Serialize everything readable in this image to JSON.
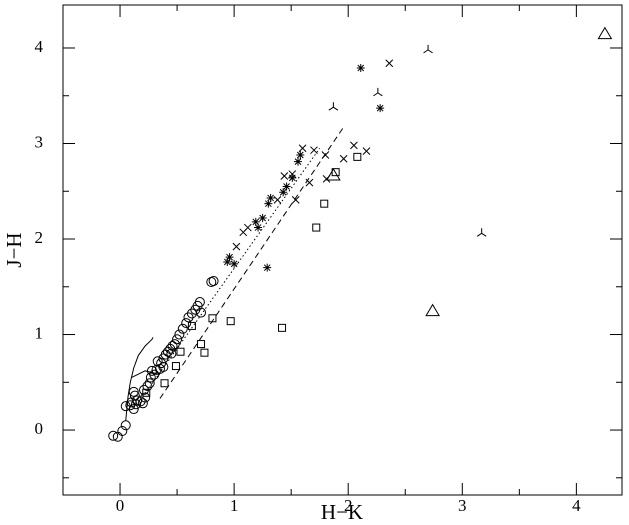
{
  "chart_data": {
    "type": "scatter",
    "x_label": "H−K",
    "y_label": "J−H",
    "xlim": [
      -0.5,
      4.4
    ],
    "ylim": [
      -0.68,
      4.45
    ],
    "xticks": [
      0,
      1,
      2,
      3,
      4
    ],
    "yticks": [
      0,
      1,
      2,
      3,
      4
    ],
    "xminorticks": [
      -0.5,
      0.5,
      1.5,
      2.5,
      3.5
    ],
    "yminorticks": [
      -0.5,
      0.5,
      1.5,
      2.5,
      3.5
    ],
    "color": "#000000",
    "series": [
      {
        "marker": "circle",
        "x": [
          -0.06,
          -0.02,
          0.02,
          0.05,
          0.05,
          0.1,
          0.12,
          0.14,
          0.13,
          0.15,
          0.18,
          0.2,
          0.22,
          0.21,
          0.24,
          0.26,
          0.27,
          0.3,
          0.32,
          0.33,
          0.36,
          0.38,
          0.4,
          0.42,
          0.44,
          0.46,
          0.48,
          0.5,
          0.52,
          0.55,
          0.58,
          0.6,
          0.63,
          0.66,
          0.68,
          0.7,
          0.71,
          0.82,
          0.8,
          0.12,
          0.09,
          0.35,
          0.45,
          0.28,
          0.38
        ],
        "values": [
          -0.06,
          -0.07,
          -0.01,
          0.05,
          0.25,
          0.29,
          0.22,
          0.27,
          0.36,
          0.31,
          0.3,
          0.28,
          0.34,
          0.42,
          0.46,
          0.49,
          0.55,
          0.58,
          0.63,
          0.72,
          0.7,
          0.75,
          0.79,
          0.82,
          0.85,
          0.88,
          0.9,
          0.95,
          1.0,
          1.06,
          1.12,
          1.18,
          1.22,
          1.26,
          1.3,
          1.34,
          1.23,
          1.56,
          1.55,
          0.4,
          0.26,
          0.64,
          0.8,
          0.62,
          0.66
        ]
      },
      {
        "marker": "square",
        "x": [
          2.08,
          1.89,
          1.79,
          1.72,
          1.42,
          0.97,
          0.81,
          0.63,
          0.71,
          0.74,
          0.39,
          0.49,
          0.53,
          0.23
        ],
        "values": [
          2.86,
          2.7,
          2.37,
          2.12,
          1.07,
          1.14,
          1.17,
          1.09,
          0.9,
          0.81,
          0.49,
          0.67,
          0.82,
          0.39
        ]
      },
      {
        "marker": "cross",
        "x": [
          2.36,
          2.05,
          2.16,
          1.96,
          1.8,
          1.7,
          1.6,
          1.51,
          1.66,
          1.54,
          1.44,
          1.38,
          1.12,
          1.02,
          1.81,
          1.08
        ],
        "values": [
          3.84,
          2.98,
          2.92,
          2.84,
          2.88,
          2.93,
          2.95,
          2.68,
          2.59,
          2.41,
          2.66,
          2.41,
          2.12,
          1.92,
          2.63,
          2.07
        ]
      },
      {
        "marker": "asterisk",
        "x": [
          2.11,
          2.28,
          1.29,
          1.58,
          1.56,
          1.51,
          1.46,
          1.43,
          1.32,
          1.3,
          1.25,
          1.19,
          1.21,
          0.96,
          1.0,
          0.94
        ],
        "values": [
          3.79,
          3.37,
          1.7,
          2.88,
          2.81,
          2.64,
          2.55,
          2.49,
          2.43,
          2.37,
          2.22,
          2.18,
          2.12,
          1.81,
          1.74,
          1.76
        ]
      },
      {
        "marker": "triangle",
        "x": [
          4.25,
          2.74,
          1.87
        ],
        "values": [
          4.15,
          1.25,
          2.67
        ]
      },
      {
        "marker": "tri",
        "x": [
          2.7,
          2.26,
          1.87,
          3.17
        ],
        "values": [
          3.98,
          3.53,
          3.38,
          2.06
        ]
      },
      {
        "marker": "none",
        "style": "solid",
        "x": [
          0.05,
          0.07,
          0.09,
          0.12,
          0.16,
          0.22,
          0.28,
          0.29
        ],
        "values": [
          0.1,
          0.35,
          0.5,
          0.65,
          0.78,
          0.88,
          0.95,
          0.97
        ]
      },
      {
        "marker": "none",
        "style": "solid",
        "x": [
          0.1,
          0.22,
          0.35
        ],
        "values": [
          0.55,
          0.62,
          0.58
        ]
      },
      {
        "marker": "none",
        "style": "dotted",
        "x": [
          0.2,
          1.75
        ],
        "values": [
          0.35,
          2.95
        ]
      },
      {
        "marker": "none",
        "style": "dashed",
        "x": [
          0.35,
          1.97
        ],
        "values": [
          0.33,
          3.19
        ]
      }
    ]
  }
}
